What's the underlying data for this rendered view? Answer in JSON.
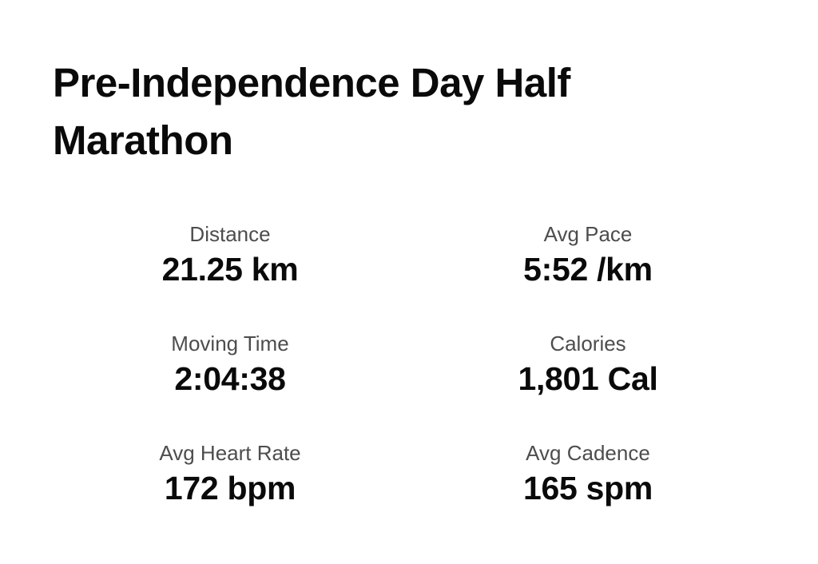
{
  "activity": {
    "title": "Pre-Independence Day Half Marathon"
  },
  "stats": [
    {
      "label": "Distance",
      "value": "21.25 km"
    },
    {
      "label": "Avg Pace",
      "value": "5:52 /km"
    },
    {
      "label": "Moving Time",
      "value": "2:04:38"
    },
    {
      "label": "Calories",
      "value": "1,801 Cal"
    },
    {
      "label": "Avg Heart Rate",
      "value": "172 bpm"
    },
    {
      "label": "Avg Cadence",
      "value": "165 spm"
    }
  ]
}
